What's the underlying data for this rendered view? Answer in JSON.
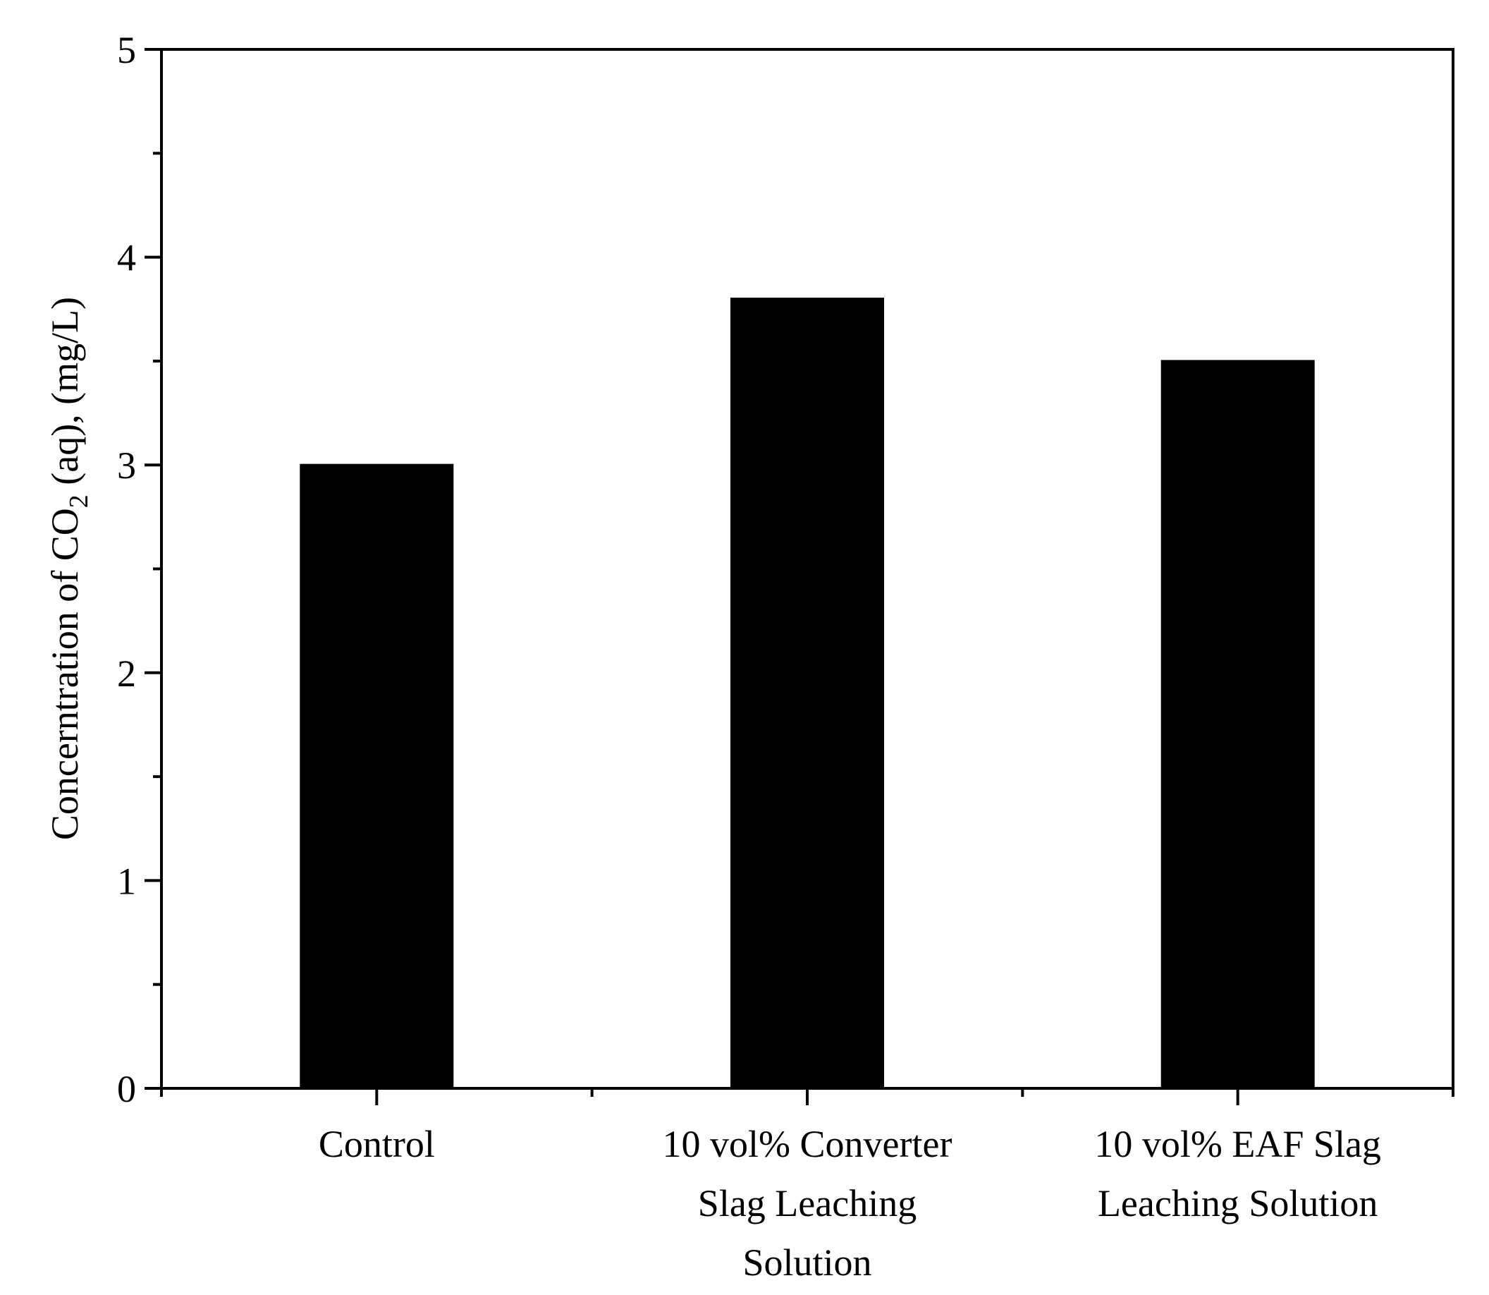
{
  "chart_data": {
    "type": "bar",
    "categories": [
      [
        "Control"
      ],
      [
        "10 vol% Converter",
        "Slag Leaching",
        "Solution"
      ],
      [
        "10 vol% EAF Slag",
        "Leaching Solution"
      ]
    ],
    "values": [
      3.0,
      3.8,
      3.5
    ],
    "ylabel": {
      "prefix": "Concerntration of CO",
      "subscript": "2",
      "suffix": " (aq), (mg/L)"
    },
    "xlabel": "",
    "ylim": [
      0,
      5
    ],
    "yticks": [
      "0",
      "1",
      "2",
      "3",
      "4",
      "5"
    ],
    "bar_color": "#000000",
    "grid": false,
    "legend": "none"
  }
}
